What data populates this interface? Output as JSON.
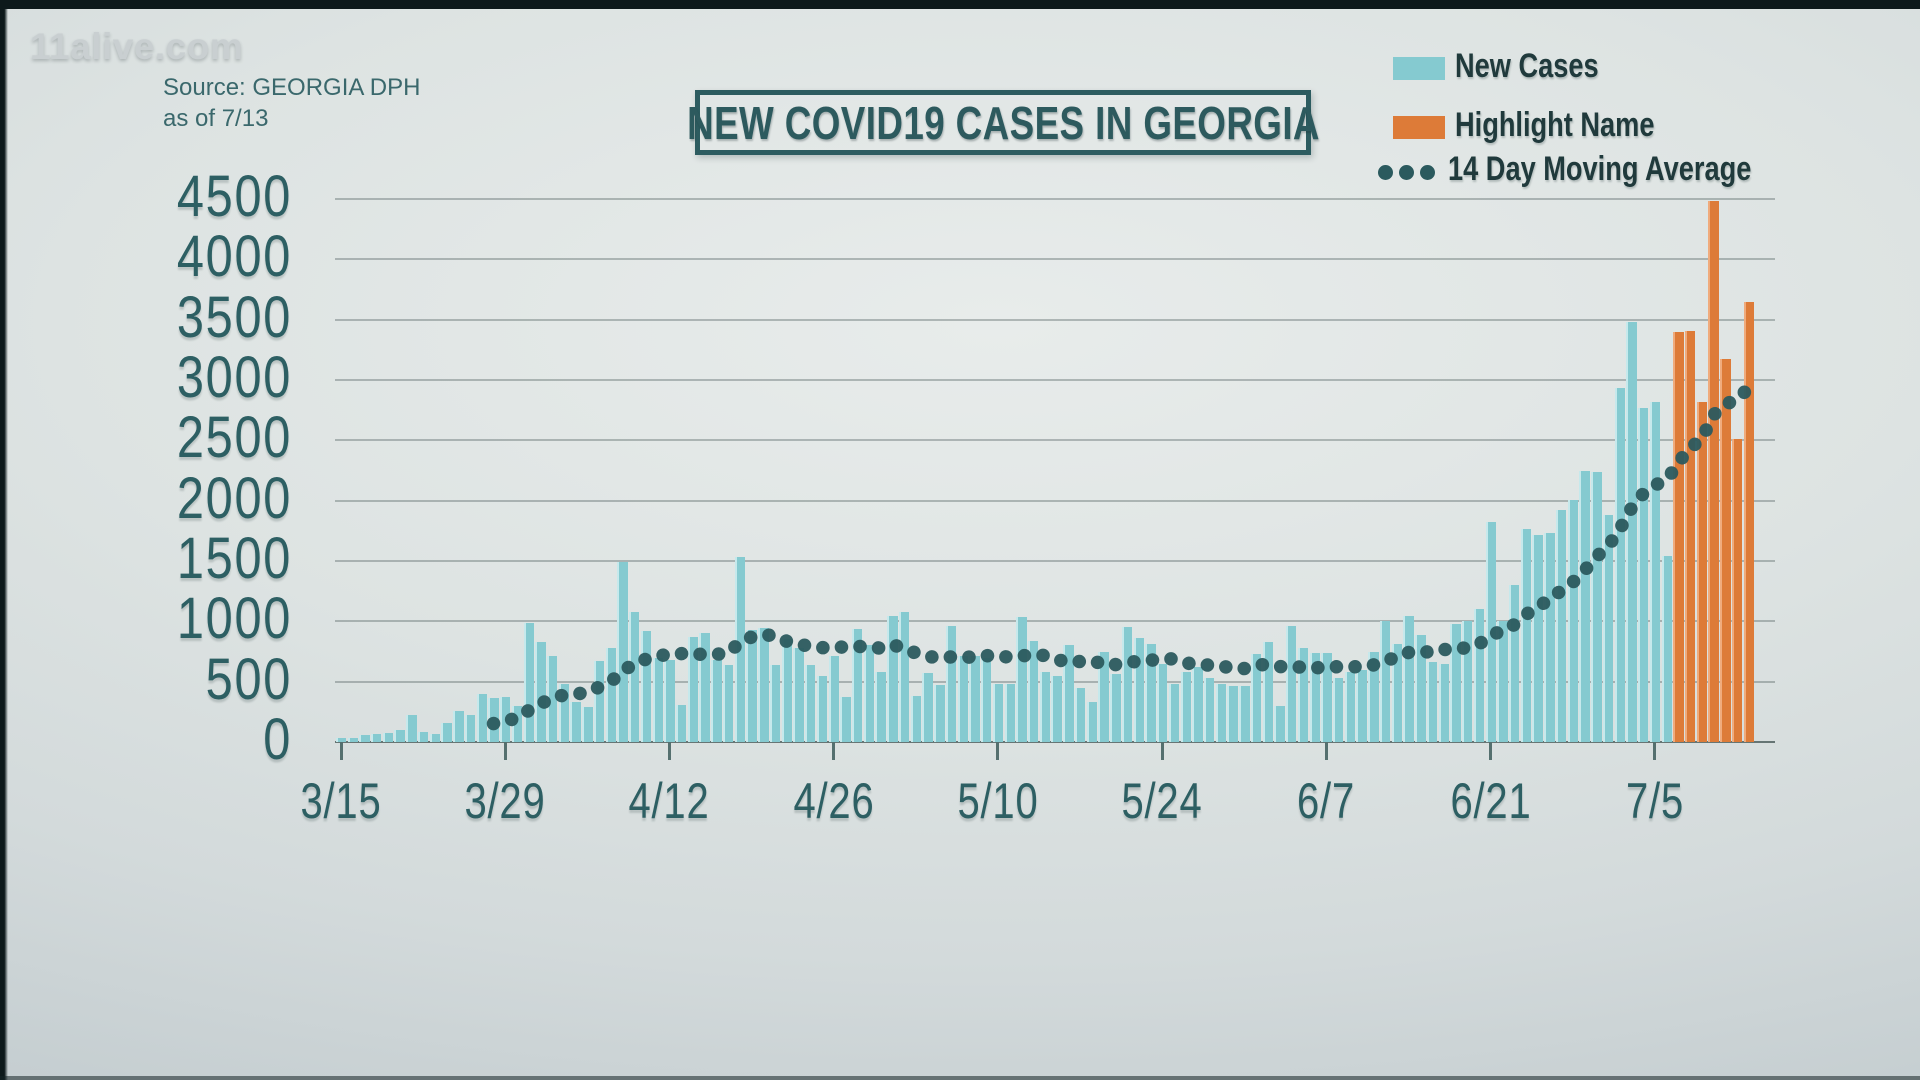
{
  "watermark": "11alive.com",
  "source": {
    "line1": "Source: GEORGIA DPH",
    "line2": "as of 7/13"
  },
  "title": "NEW COVID19 CASES IN GEORGIA",
  "legend": [
    {
      "label": "New Cases",
      "swatch": "bar"
    },
    {
      "label": "Highlight Name",
      "swatch": "highlight"
    },
    {
      "label": "14 Day Moving Average",
      "swatch": "ma-dots"
    }
  ],
  "colors": {
    "bar": "#85cad0",
    "bar_edge": "#c6e9ec",
    "highlight": "#dd7b38",
    "highlight_edge": "#f0ab7c",
    "ma_dot": "#2b5a5e",
    "axis_text": "#2d5f63",
    "legend_text": "#203a3c",
    "title_text": "#2d5a5e",
    "grid": "#5d6c6b",
    "background": "#dde3e2",
    "watermark": "#c9cfd1",
    "source_text": "#3a686c",
    "frame": "#0d191b"
  },
  "chart_data": {
    "type": "bar",
    "title": "NEW COVID19 CASES IN GEORGIA",
    "xlabel": "",
    "ylabel": "",
    "ylim": [
      0,
      4500
    ],
    "yticks": [
      0,
      500,
      1000,
      1500,
      2000,
      2500,
      3000,
      3500,
      4000,
      4500
    ],
    "ytick_labels": [
      "0",
      "500",
      "1000",
      "1500",
      "2000",
      "2500",
      "3000",
      "3500",
      "4000",
      "4500"
    ],
    "xticks": [
      "3/15",
      "3/29",
      "4/12",
      "4/26",
      "5/10",
      "5/24",
      "6/7",
      "6/21",
      "7/5"
    ],
    "grid": true,
    "legend_position": "top-right",
    "x": [
      "3/15",
      "3/16",
      "3/17",
      "3/18",
      "3/19",
      "3/20",
      "3/21",
      "3/22",
      "3/23",
      "3/24",
      "3/25",
      "3/26",
      "3/27",
      "3/28",
      "3/29",
      "3/30",
      "3/31",
      "4/1",
      "4/2",
      "4/3",
      "4/4",
      "4/5",
      "4/6",
      "4/7",
      "4/8",
      "4/9",
      "4/10",
      "4/11",
      "4/12",
      "4/13",
      "4/14",
      "4/15",
      "4/16",
      "4/17",
      "4/18",
      "4/19",
      "4/20",
      "4/21",
      "4/22",
      "4/23",
      "4/24",
      "4/25",
      "4/26",
      "4/27",
      "4/28",
      "4/29",
      "4/30",
      "5/1",
      "5/2",
      "5/3",
      "5/4",
      "5/5",
      "5/6",
      "5/7",
      "5/8",
      "5/9",
      "5/10",
      "5/11",
      "5/12",
      "5/13",
      "5/14",
      "5/15",
      "5/16",
      "5/17",
      "5/18",
      "5/19",
      "5/20",
      "5/21",
      "5/22",
      "5/23",
      "5/24",
      "5/25",
      "5/26",
      "5/27",
      "5/28",
      "5/29",
      "5/30",
      "5/31",
      "6/1",
      "6/2",
      "6/3",
      "6/4",
      "6/5",
      "6/6",
      "6/7",
      "6/8",
      "6/9",
      "6/10",
      "6/11",
      "6/12",
      "6/13",
      "6/14",
      "6/15",
      "6/16",
      "6/17",
      "6/18",
      "6/19",
      "6/20",
      "6/21",
      "6/22",
      "6/23",
      "6/24",
      "6/25",
      "6/26",
      "6/27",
      "6/28",
      "6/29",
      "6/30",
      "7/1",
      "7/2",
      "7/3",
      "7/4",
      "7/5",
      "7/6",
      "7/7",
      "7/8",
      "7/9",
      "7/10",
      "7/11",
      "7/12",
      "7/13"
    ],
    "series": [
      {
        "name": "New Cases",
        "values": [
          35,
          30,
          55,
          65,
          75,
          100,
          220,
          80,
          70,
          160,
          255,
          225,
          395,
          365,
          375,
          295,
          990,
          830,
          710,
          480,
          330,
          290,
          670,
          780,
          1490,
          1080,
          920,
          695,
          680,
          310,
          870,
          905,
          680,
          640,
          1530,
          930,
          945,
          640,
          855,
          775,
          635,
          550,
          710,
          370,
          940,
          800,
          580,
          1045,
          1080,
          385,
          570,
          470,
          965,
          710,
          710,
          700,
          480,
          480,
          1035,
          840,
          580,
          550,
          800,
          450,
          335,
          745,
          560,
          950,
          865,
          810,
          645,
          480,
          580,
          620,
          530,
          480,
          465,
          460,
          730,
          830,
          300,
          965,
          775,
          735,
          735,
          530,
          580,
          600,
          750,
          1000,
          810,
          1045,
          890,
          665,
          650,
          975,
          1000,
          1100,
          1820,
          1000,
          1300,
          1765,
          1715,
          1735,
          1920,
          2005,
          2250,
          2240,
          1880,
          2935,
          3480,
          2770,
          2820,
          1540,
          3400,
          3410,
          2820,
          4480,
          3170,
          2510,
          3650
        ]
      }
    ],
    "highlight": {
      "name": "Highlight Name",
      "start_date": "7/7",
      "end_date": "7/13"
    },
    "moving_average": {
      "name": "14 Day Moving Average",
      "window": 14,
      "style": "dotted"
    }
  }
}
